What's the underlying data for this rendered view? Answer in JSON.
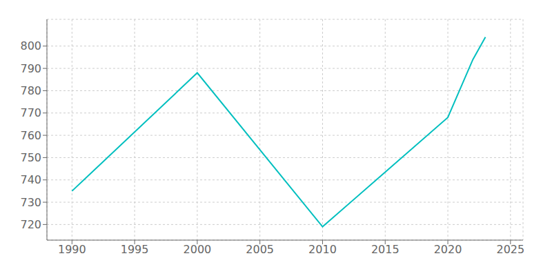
{
  "chart_data": {
    "type": "line",
    "x": [
      1990,
      2000,
      2010,
      2020,
      2021,
      2022,
      2023
    ],
    "values": [
      735,
      788,
      719,
      768,
      781,
      794,
      804
    ],
    "color": "#00BFBF",
    "xlim": [
      1988,
      2026
    ],
    "ylim": [
      713,
      812
    ],
    "xticks": [
      1990,
      1995,
      2000,
      2005,
      2010,
      2015,
      2020,
      2025
    ],
    "yticks": [
      720,
      730,
      740,
      750,
      760,
      770,
      780,
      790,
      800
    ],
    "grid": true
  }
}
